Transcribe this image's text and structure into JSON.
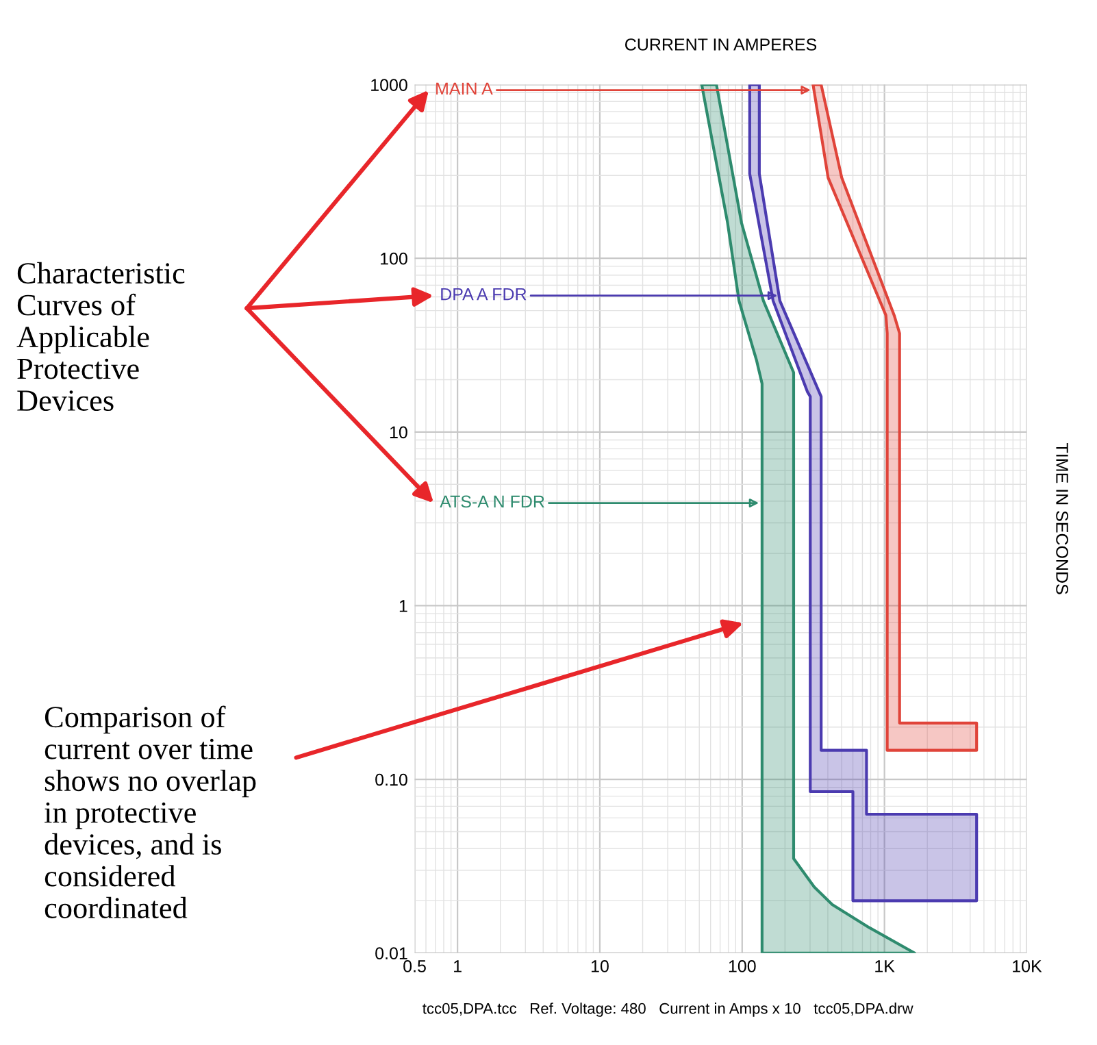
{
  "chart_data": {
    "type": "area",
    "title": "CURRENT IN AMPERES",
    "ylabel": "TIME IN SECONDS",
    "log": "xy",
    "grid": true,
    "xlim": [
      0.5,
      10000
    ],
    "ylim": [
      0.01,
      1000
    ],
    "xticks": [
      0.5,
      1,
      10,
      100,
      {
        "value": 1000,
        "label": "1K"
      },
      {
        "value": 10000,
        "label": "10K"
      }
    ],
    "yticks": [
      {
        "value": 0.01,
        "label": "0.01"
      },
      {
        "value": 0.1,
        "label": "0.10"
      },
      1,
      10,
      100,
      1000
    ],
    "series": [
      {
        "color": "#e0443a",
        "x": [
          315,
          402,
          1023,
          1045,
          1045,
          4440,
          4440,
          1277,
          1277,
          1170,
          501,
          359
        ],
        "values": [
          1000,
          291,
          47,
          37,
          0.147,
          0.147,
          0.211,
          0.211,
          37,
          47,
          291,
          1000
        ]
      },
      {
        "color": "#4b3bb0",
        "x": [
          113,
          113,
          165,
          288,
          301,
          301,
          600,
          600,
          4440,
          4440,
          748,
          748,
          359,
          359,
          184,
          132,
          132
        ],
        "values": [
          1000,
          307,
          57,
          17,
          16,
          0.085,
          0.085,
          0.02,
          0.02,
          0.063,
          0.063,
          0.147,
          0.147,
          16,
          57,
          307,
          1000
        ]
      },
      {
        "color": "#2e8b6e",
        "x": [
          52,
          79,
          95,
          126,
          138,
          138,
          1630,
          783,
          430,
          321,
          230,
          230,
          141,
          99,
          66
        ],
        "values": [
          1000,
          160,
          57,
          26,
          19,
          0.01,
          0.01,
          0.014,
          0.019,
          0.024,
          0.035,
          22,
          57,
          160,
          1000
        ]
      }
    ],
    "annotations": [
      {
        "text": "MAIN A",
        "x": 303,
        "y": 930
      },
      {
        "text": "DPA A FDR",
        "x": 177,
        "y": 61
      },
      {
        "text": "ATS-A N FDR",
        "x": 131,
        "y": 3.9
      },
      "Characteristic Curves of Applicable Protective Devices",
      "Comparison of current over time shows no overlap in protective devices, and is considered coordinated",
      "tcc05,DPA.tcc   Ref. Voltage: 480   Current in Amps x 10   tcc05,DPA.drw"
    ]
  }
}
